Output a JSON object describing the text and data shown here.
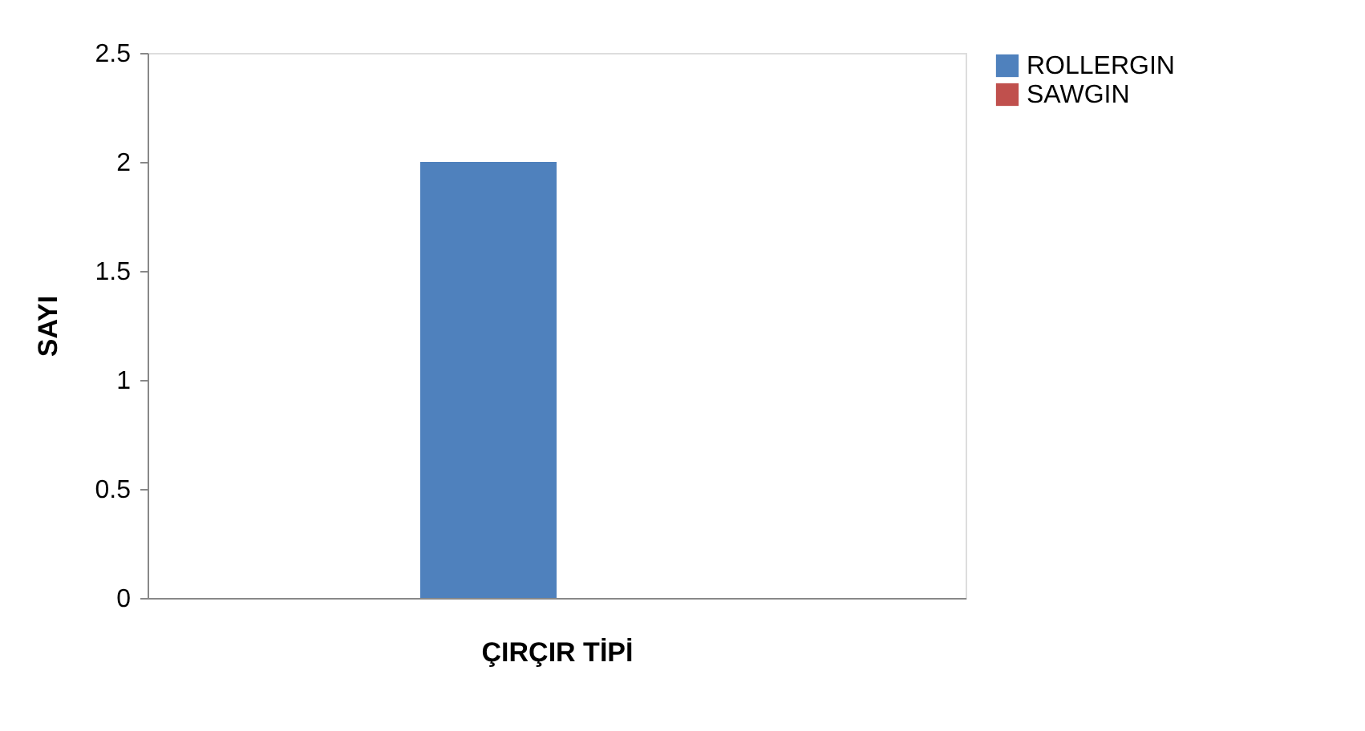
{
  "chart_data": {
    "type": "bar",
    "ylabel": "SAYI",
    "xlabel": "ÇIRÇIR TİPİ",
    "categories": [
      null
    ],
    "series": [
      {
        "name": "ROLLERGIN",
        "color": "#4f81bd",
        "values": [
          2
        ]
      },
      {
        "name": "SAWGIN",
        "color": "#c0504d",
        "values": [
          0
        ]
      }
    ],
    "ylim": [
      0,
      2.5
    ],
    "yticks": [
      0,
      0.5,
      1,
      1.5,
      2,
      2.5
    ],
    "grid": false,
    "legend": "right"
  }
}
